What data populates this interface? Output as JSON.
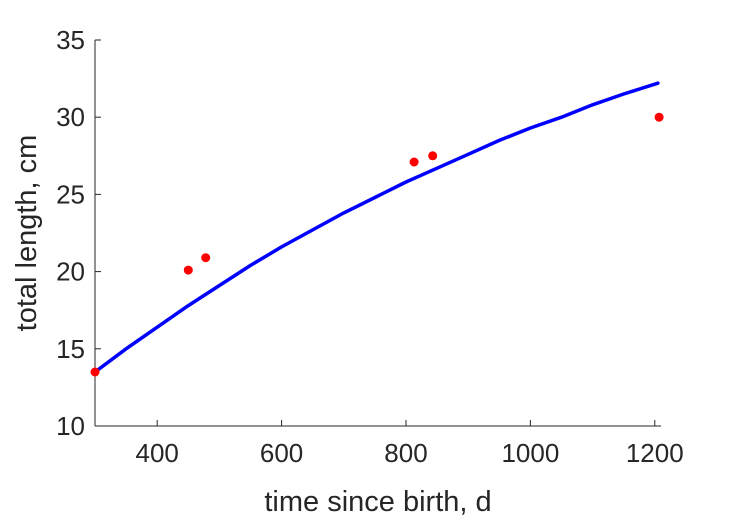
{
  "chart_data": {
    "type": "line",
    "title": "",
    "xlabel": "time since birth, d",
    "ylabel": "total length, cm",
    "xlim": [
      300,
      1210
    ],
    "ylim": [
      10,
      35
    ],
    "xticks": [
      400,
      600,
      800,
      1000,
      1200
    ],
    "yticks": [
      10,
      15,
      20,
      25,
      30,
      35
    ],
    "grid": false,
    "legend": "none",
    "series": [
      {
        "type": "line",
        "color": "#0000ff",
        "x": [
          300,
          350,
          400,
          450,
          500,
          550,
          600,
          650,
          700,
          750,
          800,
          850,
          900,
          950,
          1000,
          1050,
          1100,
          1150,
          1205
        ],
        "y": [
          13.5,
          15.0,
          16.4,
          17.8,
          19.1,
          20.4,
          21.6,
          22.7,
          23.8,
          24.8,
          25.8,
          26.7,
          27.6,
          28.5,
          29.3,
          30.0,
          30.8,
          31.5,
          32.2
        ]
      },
      {
        "type": "scatter",
        "color": "#ff0000",
        "x": [
          300,
          450,
          478,
          813,
          843,
          1207
        ],
        "y": [
          13.5,
          20.1,
          20.9,
          27.1,
          27.5,
          30.0
        ]
      }
    ]
  }
}
